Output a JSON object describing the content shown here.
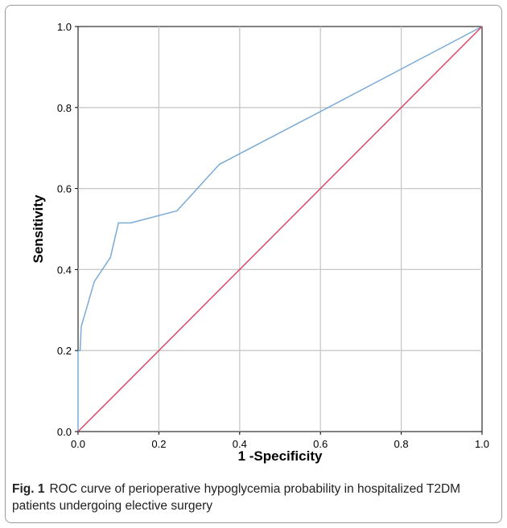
{
  "chart_data": {
    "type": "line",
    "title": "",
    "xlabel": "1 -Specificity",
    "ylabel": "Sensitivity",
    "xlim": [
      0.0,
      1.0
    ],
    "ylim": [
      0.0,
      1.0
    ],
    "x_ticks": [
      "0.0",
      "0.2",
      "0.4",
      "0.6",
      "0.8",
      "1.0"
    ],
    "y_ticks": [
      "0.0",
      "0.2",
      "0.4",
      "0.6",
      "0.8",
      "1.0"
    ],
    "grid": true,
    "series": [
      {
        "color": "#7aaad6",
        "points": [
          [
            0.0,
            0.0
          ],
          [
            0.0,
            0.2
          ],
          [
            0.005,
            0.2
          ],
          [
            0.008,
            0.26
          ],
          [
            0.02,
            0.3
          ],
          [
            0.04,
            0.37
          ],
          [
            0.06,
            0.4
          ],
          [
            0.08,
            0.43
          ],
          [
            0.1,
            0.515
          ],
          [
            0.13,
            0.515
          ],
          [
            0.245,
            0.545
          ],
          [
            0.35,
            0.66
          ],
          [
            0.6,
            0.79
          ],
          [
            1.0,
            1.0
          ]
        ]
      },
      {
        "color": "#d9486a",
        "points": [
          [
            0.0,
            0.0
          ],
          [
            1.0,
            1.0
          ]
        ]
      }
    ]
  },
  "caption": {
    "label": "Fig. 1",
    "text": "ROC curve of perioperative hypoglycemia probability in hospitalized T2DM patients undergoing elective surgery"
  }
}
